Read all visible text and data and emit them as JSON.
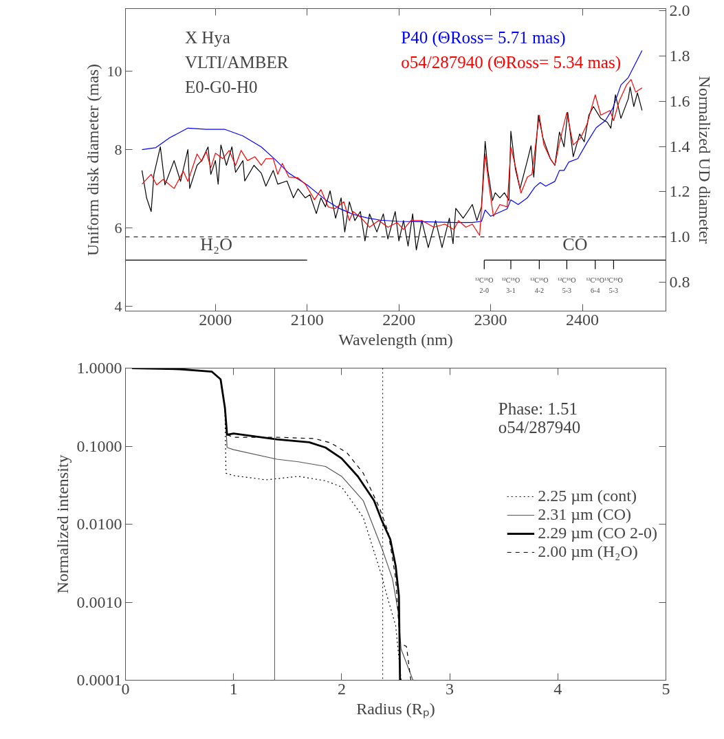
{
  "chart_data": [
    {
      "type": "line",
      "xlabel": "Wavelength (nm)",
      "ylabel": "Uniform disk diameter (mas)",
      "y2label": "Normalized UD diameter",
      "xlim": [
        1902,
        2491
      ],
      "xticks": [
        2000,
        2100,
        2200,
        2300,
        2400
      ],
      "ylim": [
        3.88,
        11.6
      ],
      "yticks": [
        4,
        6,
        8,
        10
      ],
      "y2lim": [
        0.672,
        2.01
      ],
      "y2ticks": [
        {
          "value": 0.8,
          "label": "0.8"
        },
        {
          "value": 1.0,
          "label": "1.0"
        },
        {
          "value": 1.2,
          "label": "1.2"
        },
        {
          "value": 1.4,
          "label": "1.4"
        },
        {
          "value": 1.6,
          "label": "1.6"
        },
        {
          "value": 1.8,
          "label": "1.8"
        },
        {
          "value": 2.0,
          "label": "2.0"
        }
      ],
      "grid": false,
      "legend": "top right",
      "marker": "none",
      "line_style": "solid",
      "ref_lines": [
        {
          "axis": "y2",
          "value": 1.0,
          "line_style": "dashed",
          "color": "#000000"
        }
      ],
      "annotations": [
        "X Hya",
        "VLTI/AMBER",
        "E0-G0-H0",
        "H₂O",
        "CO",
        "¹²C¹⁶O",
        "2-0",
        "¹²C¹⁶O",
        "3-1",
        "¹²C¹⁶O",
        "4-2",
        "¹²C¹⁶O",
        "5-3",
        "¹²C¹⁶O",
        "6-4",
        "¹³C¹⁶O",
        "5-3"
      ],
      "series": [
        {
          "color": "#000000",
          "x": [
            1920,
            1925,
            1930,
            1933,
            1940,
            1945,
            1955,
            1962,
            1970,
            1972,
            1980,
            1985,
            1992,
            1995,
            2000,
            2003,
            2006,
            2012,
            2018,
            2022,
            2030,
            2032,
            2042,
            2050,
            2055,
            2063,
            2068,
            2078,
            2085,
            2090,
            2098,
            2103,
            2110,
            2115,
            2120,
            2125,
            2131,
            2137,
            2141,
            2146,
            2152,
            2158,
            2163,
            2168,
            2176,
            2183,
            2188,
            2196,
            2200,
            2205,
            2210,
            2215,
            2219,
            2225,
            2232,
            2240,
            2247,
            2255,
            2259,
            2262,
            2270,
            2275,
            2280,
            2285,
            2290,
            2294,
            2297,
            2302,
            2305,
            2310,
            2315,
            2320,
            2322,
            2327,
            2332,
            2340,
            2344,
            2347,
            2352,
            2357,
            2365,
            2370,
            2375,
            2380,
            2384,
            2390,
            2397,
            2402,
            2407,
            2412,
            2420,
            2427,
            2431,
            2436,
            2442,
            2450,
            2452,
            2456,
            2460,
            2465
          ],
          "values": [
            7.47,
            6.77,
            6.42,
            7.37,
            8.07,
            7.1,
            7.72,
            7.19,
            8.0,
            7.01,
            7.6,
            7.72,
            8.07,
            7.37,
            7.72,
            7.12,
            8.12,
            7.6,
            8.07,
            7.42,
            7.72,
            7.2,
            7.6,
            7.4,
            7.07,
            7.47,
            7.12,
            7.2,
            6.77,
            7.0,
            6.77,
            6.85,
            6.37,
            6.77,
            6.54,
            6.95,
            6.25,
            6.77,
            5.9,
            6.67,
            6.19,
            6.42,
            5.67,
            6.36,
            5.9,
            6.36,
            5.72,
            6.42,
            5.67,
            6.19,
            5.54,
            6.36,
            5.44,
            6.19,
            5.5,
            6.19,
            5.5,
            6.25,
            5.6,
            6.5,
            6.25,
            6.42,
            6.6,
            6.19,
            6.54,
            8.21,
            7.47,
            6.7,
            6.9,
            6.77,
            6.9,
            6.7,
            8.47,
            7.5,
            7.0,
            7.72,
            8.1,
            7.3,
            8.88,
            8.3,
            7.77,
            7.6,
            8.45,
            8.07,
            8.95,
            7.82,
            8.4,
            8.2,
            8.88,
            9.1,
            8.8,
            8.7,
            8.55,
            9.4,
            8.8,
            9.3,
            9.6,
            9.1,
            9.45,
            9.0
          ]
        },
        {
          "name": "P40 (ΘRoss= 5.71 mas)",
          "color": "#0000ff",
          "x": [
            1920,
            1935,
            1950,
            1970,
            1990,
            2010,
            2030,
            2050,
            2065,
            2080,
            2100,
            2120,
            2135,
            2150,
            2165,
            2180,
            2200,
            2230,
            2261,
            2280,
            2290,
            2294,
            2300,
            2318,
            2322,
            2330,
            2340,
            2348,
            2354,
            2360,
            2370,
            2375,
            2380,
            2385,
            2395,
            2405,
            2415,
            2425,
            2433,
            2442,
            2450,
            2465
          ],
          "values": [
            8.0,
            8.05,
            8.3,
            8.55,
            8.52,
            8.52,
            8.35,
            8.07,
            7.75,
            7.4,
            7.1,
            6.72,
            6.5,
            6.35,
            6.26,
            6.2,
            6.17,
            6.16,
            6.14,
            6.14,
            6.17,
            6.46,
            6.3,
            6.49,
            6.72,
            6.6,
            6.77,
            7.04,
            7.16,
            7.07,
            7.19,
            7.47,
            7.47,
            7.68,
            7.77,
            8.18,
            8.56,
            8.74,
            9.05,
            9.65,
            9.84,
            10.53
          ]
        },
        {
          "name": "o54/287940 (ΘRoss= 5.34 mas)",
          "color": "#ff0000",
          "x": [
            1920,
            1930,
            1936,
            1943,
            1955,
            1965,
            1970,
            1980,
            1985,
            1990,
            1995,
            2000,
            2008,
            2015,
            2022,
            2028,
            2035,
            2043,
            2050,
            2055,
            2063,
            2068,
            2073,
            2080,
            2090,
            2098,
            2108,
            2115,
            2123,
            2130,
            2140,
            2146,
            2150,
            2158,
            2168,
            2178,
            2188,
            2198,
            2205,
            2213,
            2225,
            2238,
            2250,
            2260,
            2265,
            2273,
            2280,
            2288,
            2294,
            2298,
            2303,
            2310,
            2318,
            2322,
            2328,
            2333,
            2340,
            2345,
            2353,
            2358,
            2365,
            2370,
            2375,
            2383,
            2390,
            2398,
            2405,
            2414,
            2420,
            2430,
            2434,
            2440,
            2448,
            2453,
            2458,
            2465
          ],
          "values": [
            7.12,
            7.37,
            7.1,
            7.24,
            7.01,
            7.45,
            7.19,
            7.89,
            7.7,
            7.95,
            7.54,
            7.91,
            7.77,
            7.98,
            7.6,
            7.98,
            7.72,
            7.82,
            7.6,
            7.77,
            7.77,
            7.37,
            7.65,
            7.3,
            7.28,
            7.12,
            6.72,
            6.98,
            6.54,
            6.49,
            6.67,
            6.19,
            6.42,
            6.28,
            6.02,
            6.19,
            6.02,
            6.14,
            5.96,
            6.19,
            6.19,
            6.02,
            6.1,
            5.96,
            6.19,
            6.02,
            6.1,
            5.81,
            7.89,
            7.12,
            6.3,
            6.6,
            6.54,
            8.07,
            7.47,
            6.89,
            7.3,
            7.37,
            8.88,
            8.12,
            7.77,
            7.6,
            8.18,
            8.95,
            8.12,
            8.3,
            8.65,
            9.4,
            8.88,
            9.0,
            8.74,
            9.23,
            9.65,
            9.79,
            9.47,
            9.58
          ]
        },
        {
          "color": "#000000",
          "x": [
            1902,
            2100
          ],
          "values": [
            5.18,
            5.18
          ]
        },
        {
          "color": "#000000",
          "x": [
            2293,
            2491
          ],
          "values": [
            5.18,
            5.18
          ]
        },
        {
          "color": "#000000",
          "x": [
            2293,
            2293
          ],
          "values": [
            5.18,
            4.95
          ]
        },
        {
          "color": "#000000",
          "x": [
            2322,
            2322
          ],
          "values": [
            5.18,
            4.95
          ]
        },
        {
          "color": "#000000",
          "x": [
            2353,
            2353
          ],
          "values": [
            5.18,
            4.95
          ]
        },
        {
          "color": "#000000",
          "x": [
            2383,
            2383
          ],
          "values": [
            5.18,
            4.95
          ]
        },
        {
          "color": "#000000",
          "x": [
            2414,
            2414
          ],
          "values": [
            5.18,
            4.95
          ]
        },
        {
          "color": "#000000",
          "x": [
            2434,
            2434
          ],
          "values": [
            5.18,
            4.95
          ]
        }
      ]
    },
    {
      "type": "line",
      "xlabel": "Radius (Rₚ)",
      "ylabel": "Normalized intensity",
      "xlim": [
        0,
        5
      ],
      "xticks": [
        0,
        1,
        2,
        3,
        4,
        5
      ],
      "ylim": [
        0.0001,
        1.0
      ],
      "yticks": [
        {
          "value": 1.0,
          "label": "1.0000"
        },
        {
          "value": 0.1,
          "label": "0.1000"
        },
        {
          "value": 0.01,
          "label": "0.0100"
        },
        {
          "value": 0.001,
          "label": "0.0010"
        },
        {
          "value": 0.0001,
          "label": "0.0001"
        }
      ],
      "log": "y",
      "grid": false,
      "legend": "right",
      "marker": "none",
      "annotations": [
        "Phase: 1.51",
        "o54/287940"
      ],
      "ref_lines": [
        {
          "axis": "x",
          "value": 1.38,
          "line_style": "solid",
          "color": "#555555"
        },
        {
          "axis": "x",
          "value": 2.38,
          "line_style": "dotted",
          "color": "#000000"
        }
      ],
      "series": [
        {
          "name": "2.25 µm (cont)",
          "color": "#000000",
          "line_style": "dotted",
          "x": [
            0.06,
            0.5,
            0.8,
            0.88,
            0.92,
            0.93,
            1.0,
            1.3,
            1.6,
            1.85,
            2.0,
            2.2,
            2.37,
            2.42,
            2.5,
            2.55
          ],
          "values": [
            1.0,
            0.97,
            0.9,
            0.72,
            0.31,
            0.045,
            0.042,
            0.037,
            0.041,
            0.036,
            0.03,
            0.0122,
            0.0022,
            0.0012,
            0.0005,
            0.0001
          ]
        },
        {
          "name": "2.31 µm (CO)",
          "color": "#555555",
          "line_style": "solid",
          "x": [
            0.06,
            0.5,
            0.8,
            0.88,
            0.92,
            0.94,
            1.0,
            1.4,
            1.6,
            1.85,
            2.0,
            2.2,
            2.37,
            2.47,
            2.52,
            2.55,
            2.66
          ],
          "values": [
            1.0,
            0.97,
            0.9,
            0.72,
            0.31,
            0.096,
            0.09,
            0.068,
            0.063,
            0.055,
            0.041,
            0.02,
            0.005,
            0.002,
            0.0008,
            0.00025,
            0.0001
          ]
        },
        {
          "name": "2.29 µm (CO 2-0)",
          "color": "#000000",
          "line_style": "solid",
          "x": [
            0.06,
            0.5,
            0.8,
            0.88,
            0.92,
            0.94,
            1.0,
            1.4,
            1.7,
            1.85,
            2.0,
            2.15,
            2.3,
            2.37,
            2.45,
            2.5,
            2.53,
            2.54
          ],
          "values": [
            1.0,
            0.97,
            0.9,
            0.72,
            0.31,
            0.14,
            0.145,
            0.122,
            0.112,
            0.096,
            0.0695,
            0.041,
            0.02,
            0.0113,
            0.0064,
            0.0029,
            0.0012,
            0.0001
          ]
        },
        {
          "name": "2.00 µm (H₂O)",
          "color": "#000000",
          "line_style": "dashed",
          "x": [
            0.94,
            1.0,
            1.4,
            1.75,
            1.9,
            2.05,
            2.2,
            2.35,
            2.43,
            2.5,
            2.54,
            2.6,
            2.64
          ],
          "values": [
            0.14,
            0.13,
            0.13,
            0.125,
            0.11,
            0.082,
            0.045,
            0.0162,
            0.008,
            0.002,
            0.0003,
            0.00027,
            0.0001
          ]
        }
      ]
    }
  ]
}
